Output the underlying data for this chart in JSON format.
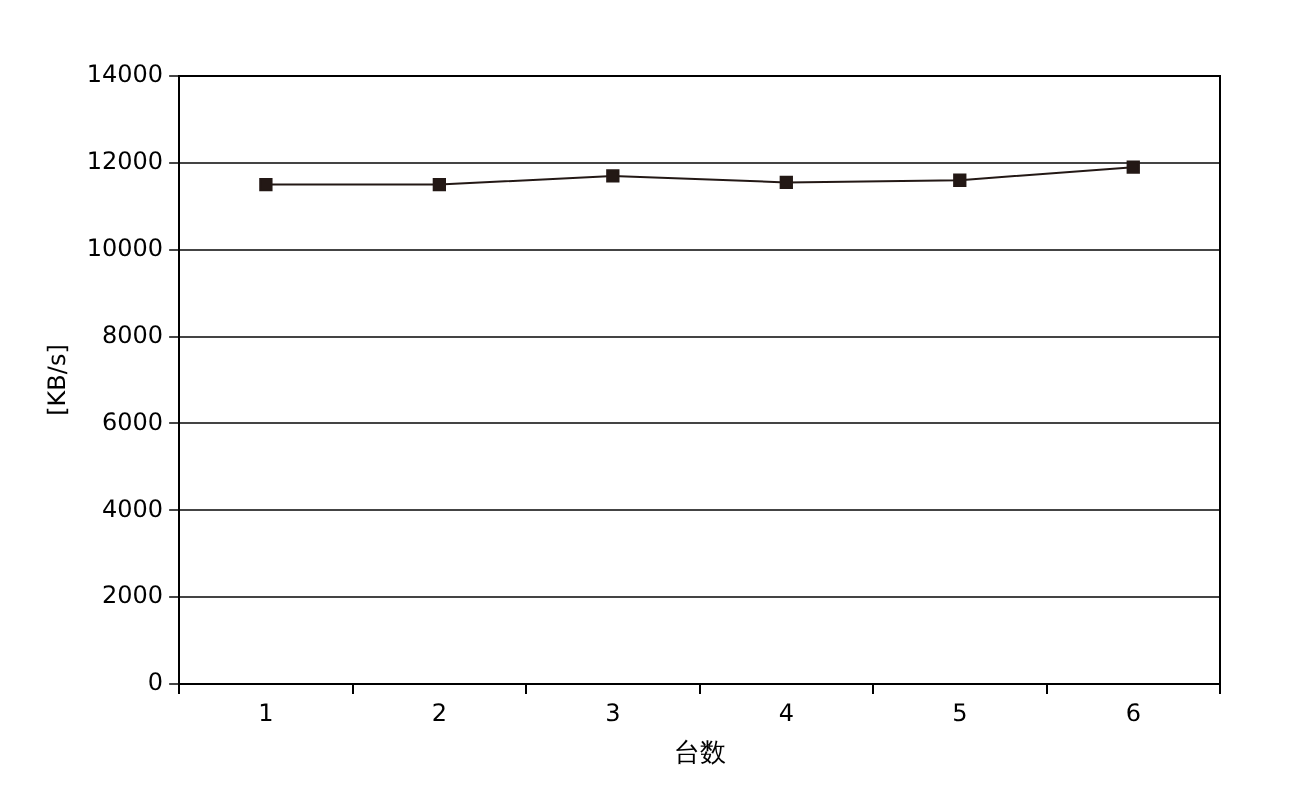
{
  "chart_data": {
    "type": "line",
    "xlabel": "台数",
    "ylabel": "[KB/s]",
    "categories": [
      "1",
      "2",
      "3",
      "4",
      "5",
      "6"
    ],
    "series": [
      {
        "color": "#231815",
        "values": [
          11500,
          11500,
          11700,
          11550,
          11600,
          11900
        ]
      }
    ],
    "ylim": [
      0,
      14000
    ],
    "yticks": [
      0,
      2000,
      4000,
      6000,
      8000,
      10000,
      12000,
      14000
    ],
    "grid": "y",
    "marker": "square",
    "line_style": "solid"
  }
}
